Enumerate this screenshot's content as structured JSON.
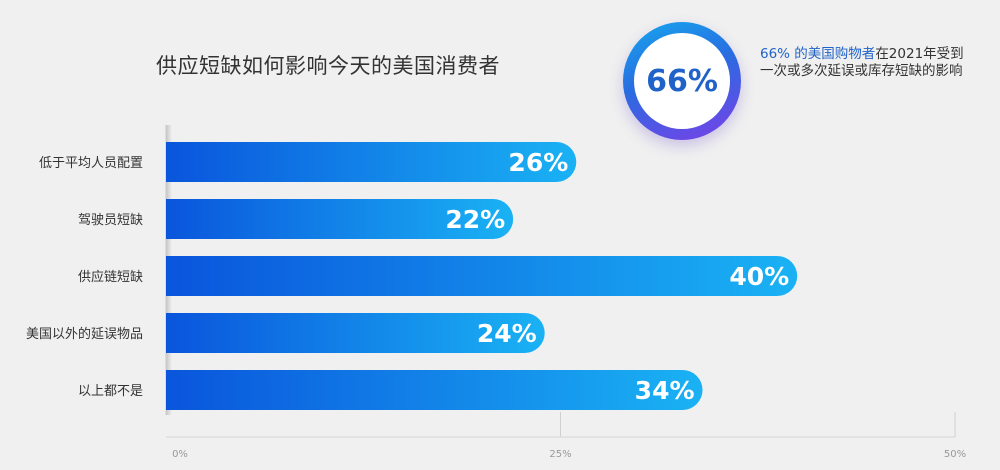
{
  "title": "供应短缺如何影响今天的美国消费者",
  "badge": {
    "value": "66%"
  },
  "callout": {
    "highlight": "66% 的美国购物者",
    "text": "在2021年受到一次或多次延误或库存短缺的影响"
  },
  "colors": {
    "bar_start": "#0a55dc",
    "bar_end": "#1ab2f4",
    "accent": "#1f62c8"
  },
  "chart_data": {
    "type": "bar",
    "orientation": "horizontal",
    "categories": [
      "低于平均人员配置",
      "驾驶员短缺",
      "供应链短缺",
      "美国以外的延误物品",
      "以上都不是"
    ],
    "values": [
      26,
      22,
      40,
      24,
      34
    ],
    "value_labels": [
      "26%",
      "22%",
      "40%",
      "24%",
      "34%"
    ],
    "xlim": [
      0,
      50
    ],
    "xticks": [
      0,
      25,
      50
    ],
    "xtick_labels": [
      "0%",
      "25%",
      "50%"
    ],
    "title": "供应短缺如何影响今天的美国消费者",
    "xlabel": "",
    "ylabel": "",
    "grid": true
  }
}
